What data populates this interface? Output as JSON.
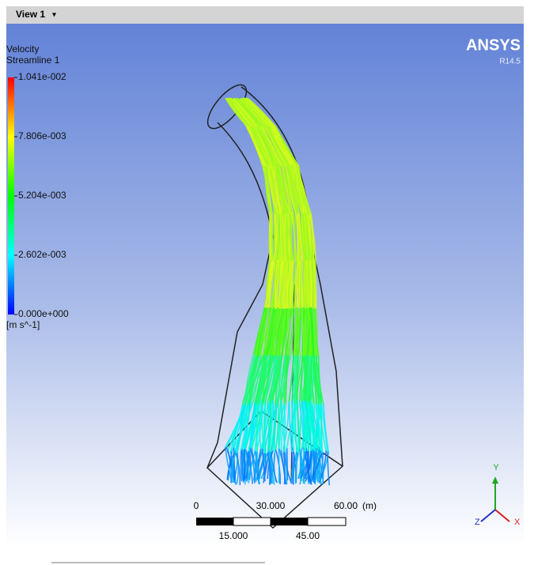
{
  "view": {
    "title": "View 1",
    "menu": "▾"
  },
  "legend": {
    "variable": "Velocity",
    "object": "Streamline 1",
    "labels": [
      "1.041e-002",
      "7.806e-003",
      "5.204e-003",
      "2.602e-003",
      "0.000e+000"
    ],
    "unit": "[m s^-1]"
  },
  "logo": {
    "brand": "ANSYS",
    "version": "R14.5"
  },
  "scale": {
    "top_labels": [
      "0",
      "30.000",
      "60.00"
    ],
    "unit": "(m)",
    "bottom_labels": [
      "15.000",
      "45.00"
    ]
  },
  "axes": {
    "y": "Y",
    "z": "Z",
    "x": "X"
  }
}
